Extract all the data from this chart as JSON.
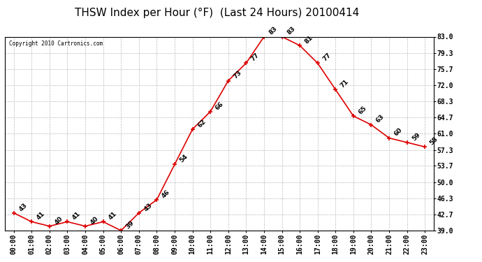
{
  "title": "THSW Index per Hour (°F)  (Last 24 Hours) 20100414",
  "copyright": "Copyright 2010 Cartronics.com",
  "hours": [
    "00:00",
    "01:00",
    "02:00",
    "03:00",
    "04:00",
    "05:00",
    "06:00",
    "07:00",
    "08:00",
    "09:00",
    "10:00",
    "11:00",
    "12:00",
    "13:00",
    "14:00",
    "15:00",
    "16:00",
    "17:00",
    "18:00",
    "19:00",
    "20:00",
    "21:00",
    "22:00",
    "23:00"
  ],
  "values": [
    43,
    41,
    40,
    41,
    40,
    41,
    39,
    43,
    46,
    54,
    62,
    66,
    73,
    77,
    83,
    83,
    81,
    77,
    71,
    65,
    63,
    60,
    59,
    58
  ],
  "ylim": [
    39.0,
    83.0
  ],
  "yticks": [
    39.0,
    42.7,
    46.3,
    50.0,
    53.7,
    57.3,
    61.0,
    64.7,
    68.3,
    72.0,
    75.7,
    79.3,
    83.0
  ],
  "line_color": "#dd0000",
  "marker_color": "#dd0000",
  "bg_color": "#ffffff",
  "grid_color": "#bbbbbb",
  "label_color": "#000000",
  "title_fontsize": 11,
  "tick_fontsize": 7,
  "annotation_fontsize": 6.5
}
